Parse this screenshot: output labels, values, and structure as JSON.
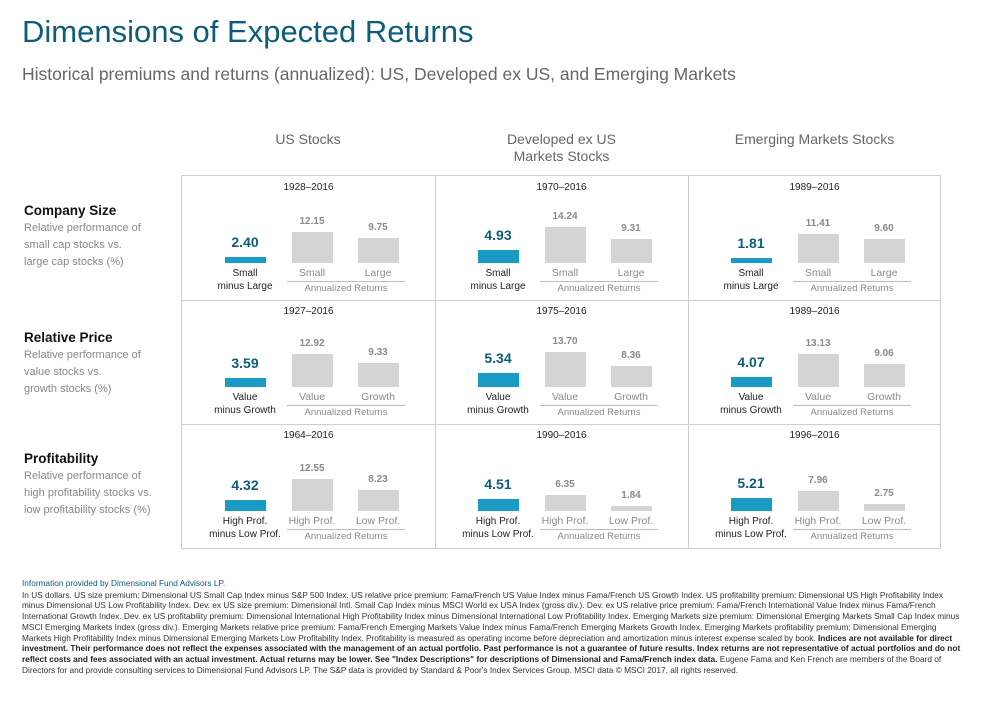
{
  "header": {
    "title": "Dimensions of Expected Returns",
    "subtitle": "Historical premiums  and returns (annualized):  US, Developed ex US, and Emerging  Markets"
  },
  "columns": [
    {
      "line1": "",
      "line2": "US Stocks"
    },
    {
      "line1": "Developed ex US",
      "line2": "Markets Stocks"
    },
    {
      "line1": "",
      "line2": "Emerging Markets Stocks"
    }
  ],
  "rows": [
    {
      "title": "Company  Size",
      "desc1": "Relative performance of",
      "desc2": "small cap stocks vs.",
      "desc3": "large cap stocks (%)"
    },
    {
      "title": "Relative Price",
      "desc1": "Relative performance of",
      "desc2": "value stocks vs.",
      "desc3": "growth stocks (%)"
    },
    {
      "title": "Profitability",
      "desc1": "Relative performance of",
      "desc2": "high profitability stocks vs.",
      "desc3": "low profitability stocks (%)"
    }
  ],
  "annualized_label": "Annualized Returns",
  "chart_data": {
    "type": "bar",
    "colors": {
      "premium": "#1a9bc6",
      "returns": "#d4d4d4"
    },
    "cells": [
      {
        "row": 0,
        "col": 0,
        "period": "1928–2016",
        "premium": 2.4,
        "prem_label1": "Small",
        "prem_label2": "minus Large",
        "a_label": "Small",
        "a": 12.15,
        "b_label": "Large",
        "b": 9.75
      },
      {
        "row": 0,
        "col": 1,
        "period": "1970–2016",
        "premium": 4.93,
        "prem_label1": "Small",
        "prem_label2": "minus Large",
        "a_label": "Small",
        "a": 14.24,
        "b_label": "Large",
        "b": 9.31
      },
      {
        "row": 0,
        "col": 2,
        "period": "1989–2016",
        "premium": 1.81,
        "prem_label1": "Small",
        "prem_label2": "minus Large",
        "a_label": "Small",
        "a": 11.41,
        "b_label": "Large",
        "b": 9.6
      },
      {
        "row": 1,
        "col": 0,
        "period": "1927–2016",
        "premium": 3.59,
        "prem_label1": "Value",
        "prem_label2": "minus Growth",
        "a_label": "Value",
        "a": 12.92,
        "b_label": "Growth",
        "b": 9.33
      },
      {
        "row": 1,
        "col": 1,
        "period": "1975–2016",
        "premium": 5.34,
        "prem_label1": "Value",
        "prem_label2": "minus Growth",
        "a_label": "Value",
        "a": 13.7,
        "b_label": "Growth",
        "b": 8.36
      },
      {
        "row": 1,
        "col": 2,
        "period": "1989–2016",
        "premium": 4.07,
        "prem_label1": "Value",
        "prem_label2": "minus Growth",
        "a_label": "Value",
        "a": 13.13,
        "b_label": "Growth",
        "b": 9.06
      },
      {
        "row": 2,
        "col": 0,
        "period": "1964–2016",
        "premium": 4.32,
        "prem_label1": "High Prof.",
        "prem_label2": "minus Low Prof.",
        "a_label": "High Prof.",
        "a": 12.55,
        "b_label": "Low Prof.",
        "b": 8.23
      },
      {
        "row": 2,
        "col": 1,
        "period": "1990–2016",
        "premium": 4.51,
        "prem_label1": "High Prof.",
        "prem_label2": "minus Low Prof.",
        "a_label": "High Prof.",
        "a": 6.35,
        "b_label": "Low Prof.",
        "b": 1.84
      },
      {
        "row": 2,
        "col": 2,
        "period": "1996–2016",
        "premium": 5.21,
        "prem_label1": "High Prof.",
        "prem_label2": "minus Low Prof.",
        "a_label": "High Prof.",
        "a": 7.96,
        "b_label": "Low Prof.",
        "b": 2.75
      }
    ]
  },
  "footer": {
    "source": "Information provided by Dimensional Fund Advisors LP.",
    "body": "In US dollars. US size premium: Dimensional US Small Cap Index minus S&P 500 Index. US relative price premium: Fama/French US Value Index minus Fama/French US Growth Index. US profitability premium: Dimensional US High Profitability Index minus Dimensional US Low Profitability Index. Dev. ex US size premium: Dimensional Intl. Small Cap Index minus MSCI World ex USA Index (gross div.). Dev. ex US relative price premium: Fama/French International Value Index minus Fama/French International Growth Index. Dev. ex US profitability premium: Dimensional International High Profitability Index minus Dimensional International Low Profitability Index. Emerging Markets size premium: Dimensional Emerging Markets Small Cap Index minus MSCI Emerging Markets Index (gross div.). Emerging Markets relative price premium: Fama/French Emerging Markets Value Index minus Fama/French Emerging Markets Growth Index. Emerging Markets profitability premium: Dimensional Emerging Markets High Profitability Index minus Dimensional Emerging Markets Low Profitability Index. Profitability is measured as operating income before depreciation and amortization minus interest expense scaled by book.",
    "bold": "Indices are not available for direct investment. Their performance does not reflect the expenses associated with the management of an actual portfolio. Past performance is not a guarantee of future results. Index returns are not representative of actual portfolios and do not reflect costs and fees associated with an actual investment. Actual returns may be lower. See \"Index Descriptions\" for descriptions of Dimensional and Fama/French index data.",
    "tail": "Eugene Fama and Ken French are members of the Board of Directors for and provide consulting services to Dimensional Fund Advisors LP. The S&P data is provided by Standard & Poor's Index Services Group. MSCI data © MSCI 2017, all rights reserved."
  }
}
